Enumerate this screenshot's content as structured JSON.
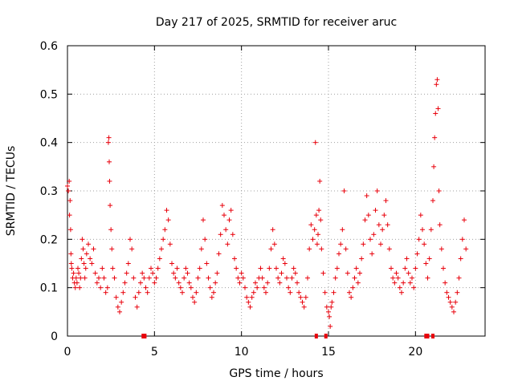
{
  "chart_data": {
    "type": "scatter",
    "title": "Day 217 of 2025, SRMTID for receiver aruc",
    "xlabel": "GPS time / hours",
    "ylabel": "SRMTID / TECUs",
    "xlim": [
      0,
      24
    ],
    "ylim": [
      0,
      0.6
    ],
    "xticks": [
      0,
      5,
      10,
      15,
      20
    ],
    "xtick_labels": [
      "0",
      "5",
      "10",
      "15",
      "20"
    ],
    "yticks": [
      0,
      0.1,
      0.2,
      0.3,
      0.4,
      0.5,
      0.6
    ],
    "ytick_labels": [
      "0",
      "0.1",
      "0.2",
      "0.3",
      "0.4",
      "0.5",
      "0.6"
    ],
    "grid": true,
    "marker": "plus",
    "color": "#e8000b",
    "series": [
      {
        "name": "SRMTID",
        "points": [
          [
            0.0,
            0.31
          ],
          [
            0.05,
            0.3
          ],
          [
            0.1,
            0.32
          ],
          [
            0.12,
            0.25
          ],
          [
            0.15,
            0.28
          ],
          [
            0.18,
            0.22
          ],
          [
            0.2,
            0.17
          ],
          [
            0.22,
            0.15
          ],
          [
            0.25,
            0.14
          ],
          [
            0.3,
            0.12
          ],
          [
            0.35,
            0.13
          ],
          [
            0.4,
            0.11
          ],
          [
            0.45,
            0.1
          ],
          [
            0.5,
            0.12
          ],
          [
            0.55,
            0.11
          ],
          [
            0.6,
            0.14
          ],
          [
            0.65,
            0.13
          ],
          [
            0.7,
            0.1
          ],
          [
            0.75,
            0.12
          ],
          [
            0.8,
            0.16
          ],
          [
            0.85,
            0.2
          ],
          [
            0.9,
            0.18
          ],
          [
            0.95,
            0.15
          ],
          [
            1.0,
            0.12
          ],
          [
            1.05,
            0.14
          ],
          [
            1.1,
            0.17
          ],
          [
            1.2,
            0.19
          ],
          [
            1.3,
            0.16
          ],
          [
            1.4,
            0.15
          ],
          [
            1.5,
            0.18
          ],
          [
            1.6,
            0.13
          ],
          [
            1.7,
            0.11
          ],
          [
            1.8,
            0.12
          ],
          [
            1.9,
            0.1
          ],
          [
            2.0,
            0.14
          ],
          [
            2.1,
            0.12
          ],
          [
            2.2,
            0.09
          ],
          [
            2.3,
            0.1
          ],
          [
            2.35,
            0.4
          ],
          [
            2.38,
            0.41
          ],
          [
            2.4,
            0.36
          ],
          [
            2.42,
            0.32
          ],
          [
            2.45,
            0.27
          ],
          [
            2.5,
            0.22
          ],
          [
            2.55,
            0.18
          ],
          [
            2.6,
            0.14
          ],
          [
            2.7,
            0.12
          ],
          [
            2.8,
            0.08
          ],
          [
            2.9,
            0.06
          ],
          [
            3.0,
            0.05
          ],
          [
            3.1,
            0.07
          ],
          [
            3.2,
            0.09
          ],
          [
            3.3,
            0.11
          ],
          [
            3.4,
            0.13
          ],
          [
            3.5,
            0.15
          ],
          [
            3.6,
            0.2
          ],
          [
            3.7,
            0.18
          ],
          [
            3.8,
            0.12
          ],
          [
            3.9,
            0.08
          ],
          [
            4.0,
            0.06
          ],
          [
            4.1,
            0.09
          ],
          [
            4.2,
            0.11
          ],
          [
            4.3,
            0.13
          ],
          [
            4.4,
            0.12
          ],
          [
            4.5,
            0.1
          ],
          [
            4.6,
            0.09
          ],
          [
            4.7,
            0.12
          ],
          [
            4.8,
            0.14
          ],
          [
            4.9,
            0.13
          ],
          [
            5.0,
            0.11
          ],
          [
            5.1,
            0.12
          ],
          [
            5.2,
            0.14
          ],
          [
            5.3,
            0.16
          ],
          [
            5.4,
            0.18
          ],
          [
            5.5,
            0.2
          ],
          [
            5.6,
            0.22
          ],
          [
            5.7,
            0.26
          ],
          [
            5.8,
            0.24
          ],
          [
            5.9,
            0.19
          ],
          [
            6.0,
            0.15
          ],
          [
            6.1,
            0.13
          ],
          [
            6.2,
            0.12
          ],
          [
            6.3,
            0.14
          ],
          [
            6.4,
            0.11
          ],
          [
            6.5,
            0.1
          ],
          [
            6.6,
            0.09
          ],
          [
            6.7,
            0.12
          ],
          [
            6.8,
            0.14
          ],
          [
            6.9,
            0.13
          ],
          [
            7.0,
            0.11
          ],
          [
            7.1,
            0.1
          ],
          [
            7.2,
            0.08
          ],
          [
            7.3,
            0.07
          ],
          [
            7.4,
            0.09
          ],
          [
            7.5,
            0.12
          ],
          [
            7.6,
            0.14
          ],
          [
            7.7,
            0.18
          ],
          [
            7.8,
            0.24
          ],
          [
            7.9,
            0.2
          ],
          [
            8.0,
            0.15
          ],
          [
            8.1,
            0.12
          ],
          [
            8.2,
            0.1
          ],
          [
            8.3,
            0.08
          ],
          [
            8.4,
            0.09
          ],
          [
            8.5,
            0.11
          ],
          [
            8.6,
            0.13
          ],
          [
            8.7,
            0.17
          ],
          [
            8.8,
            0.21
          ],
          [
            8.9,
            0.27
          ],
          [
            9.0,
            0.25
          ],
          [
            9.1,
            0.22
          ],
          [
            9.2,
            0.19
          ],
          [
            9.3,
            0.24
          ],
          [
            9.4,
            0.26
          ],
          [
            9.5,
            0.21
          ],
          [
            9.6,
            0.16
          ],
          [
            9.7,
            0.14
          ],
          [
            9.8,
            0.12
          ],
          [
            9.9,
            0.11
          ],
          [
            10.0,
            0.13
          ],
          [
            10.1,
            0.12
          ],
          [
            10.2,
            0.1
          ],
          [
            10.3,
            0.08
          ],
          [
            10.4,
            0.07
          ],
          [
            10.5,
            0.06
          ],
          [
            10.6,
            0.08
          ],
          [
            10.7,
            0.09
          ],
          [
            10.8,
            0.11
          ],
          [
            10.9,
            0.1
          ],
          [
            11.0,
            0.12
          ],
          [
            11.1,
            0.14
          ],
          [
            11.2,
            0.12
          ],
          [
            11.3,
            0.1
          ],
          [
            11.4,
            0.09
          ],
          [
            11.5,
            0.11
          ],
          [
            11.6,
            0.14
          ],
          [
            11.7,
            0.18
          ],
          [
            11.8,
            0.22
          ],
          [
            11.9,
            0.19
          ],
          [
            12.0,
            0.14
          ],
          [
            12.1,
            0.12
          ],
          [
            12.2,
            0.11
          ],
          [
            12.3,
            0.13
          ],
          [
            12.4,
            0.16
          ],
          [
            12.5,
            0.15
          ],
          [
            12.6,
            0.12
          ],
          [
            12.7,
            0.1
          ],
          [
            12.8,
            0.09
          ],
          [
            12.9,
            0.12
          ],
          [
            13.0,
            0.14
          ],
          [
            13.1,
            0.13
          ],
          [
            13.2,
            0.11
          ],
          [
            13.3,
            0.09
          ],
          [
            13.4,
            0.08
          ],
          [
            13.5,
            0.07
          ],
          [
            13.6,
            0.06
          ],
          [
            13.7,
            0.08
          ],
          [
            13.8,
            0.12
          ],
          [
            13.9,
            0.18
          ],
          [
            14.0,
            0.23
          ],
          [
            14.1,
            0.2
          ],
          [
            14.2,
            0.22
          ],
          [
            14.25,
            0.4
          ],
          [
            14.3,
            0.25
          ],
          [
            14.35,
            0.19
          ],
          [
            14.4,
            0.21
          ],
          [
            14.45,
            0.26
          ],
          [
            14.5,
            0.32
          ],
          [
            14.55,
            0.24
          ],
          [
            14.6,
            0.18
          ],
          [
            14.7,
            0.13
          ],
          [
            14.8,
            0.09
          ],
          [
            14.9,
            0.06
          ],
          [
            15.0,
            0.05
          ],
          [
            15.05,
            0.04
          ],
          [
            15.1,
            0.02
          ],
          [
            15.15,
            0.06
          ],
          [
            15.2,
            0.07
          ],
          [
            15.3,
            0.09
          ],
          [
            15.4,
            0.12
          ],
          [
            15.5,
            0.14
          ],
          [
            15.6,
            0.17
          ],
          [
            15.7,
            0.19
          ],
          [
            15.8,
            0.22
          ],
          [
            15.9,
            0.3
          ],
          [
            16.0,
            0.18
          ],
          [
            16.1,
            0.13
          ],
          [
            16.2,
            0.09
          ],
          [
            16.3,
            0.08
          ],
          [
            16.4,
            0.1
          ],
          [
            16.5,
            0.12
          ],
          [
            16.6,
            0.14
          ],
          [
            16.7,
            0.11
          ],
          [
            16.8,
            0.13
          ],
          [
            16.9,
            0.16
          ],
          [
            17.0,
            0.19
          ],
          [
            17.1,
            0.24
          ],
          [
            17.2,
            0.29
          ],
          [
            17.3,
            0.25
          ],
          [
            17.4,
            0.2
          ],
          [
            17.5,
            0.17
          ],
          [
            17.6,
            0.21
          ],
          [
            17.7,
            0.26
          ],
          [
            17.8,
            0.3
          ],
          [
            17.9,
            0.23
          ],
          [
            18.0,
            0.19
          ],
          [
            18.1,
            0.22
          ],
          [
            18.2,
            0.25
          ],
          [
            18.3,
            0.28
          ],
          [
            18.4,
            0.23
          ],
          [
            18.5,
            0.18
          ],
          [
            18.6,
            0.14
          ],
          [
            18.7,
            0.12
          ],
          [
            18.8,
            0.11
          ],
          [
            18.9,
            0.13
          ],
          [
            19.0,
            0.12
          ],
          [
            19.1,
            0.1
          ],
          [
            19.2,
            0.09
          ],
          [
            19.3,
            0.11
          ],
          [
            19.4,
            0.14
          ],
          [
            19.5,
            0.16
          ],
          [
            19.6,
            0.13
          ],
          [
            19.7,
            0.11
          ],
          [
            19.8,
            0.12
          ],
          [
            19.9,
            0.1
          ],
          [
            20.0,
            0.14
          ],
          [
            20.1,
            0.17
          ],
          [
            20.2,
            0.2
          ],
          [
            20.3,
            0.25
          ],
          [
            20.4,
            0.22
          ],
          [
            20.5,
            0.19
          ],
          [
            20.6,
            0.15
          ],
          [
            20.7,
            0.12
          ],
          [
            20.8,
            0.16
          ],
          [
            20.9,
            0.22
          ],
          [
            21.0,
            0.28
          ],
          [
            21.05,
            0.35
          ],
          [
            21.1,
            0.41
          ],
          [
            21.15,
            0.46
          ],
          [
            21.2,
            0.52
          ],
          [
            21.25,
            0.53
          ],
          [
            21.3,
            0.47
          ],
          [
            21.35,
            0.3
          ],
          [
            21.4,
            0.23
          ],
          [
            21.5,
            0.18
          ],
          [
            21.6,
            0.14
          ],
          [
            21.7,
            0.11
          ],
          [
            21.8,
            0.09
          ],
          [
            21.9,
            0.08
          ],
          [
            22.0,
            0.07
          ],
          [
            22.1,
            0.06
          ],
          [
            22.2,
            0.05
          ],
          [
            22.3,
            0.07
          ],
          [
            22.4,
            0.09
          ],
          [
            22.5,
            0.12
          ],
          [
            22.6,
            0.16
          ],
          [
            22.7,
            0.2
          ],
          [
            22.8,
            0.24
          ],
          [
            22.9,
            0.18
          ]
        ],
        "zero_values_at": [
          4.35,
          4.45,
          14.3,
          14.85,
          20.6,
          20.7,
          21.0
        ]
      }
    ]
  }
}
